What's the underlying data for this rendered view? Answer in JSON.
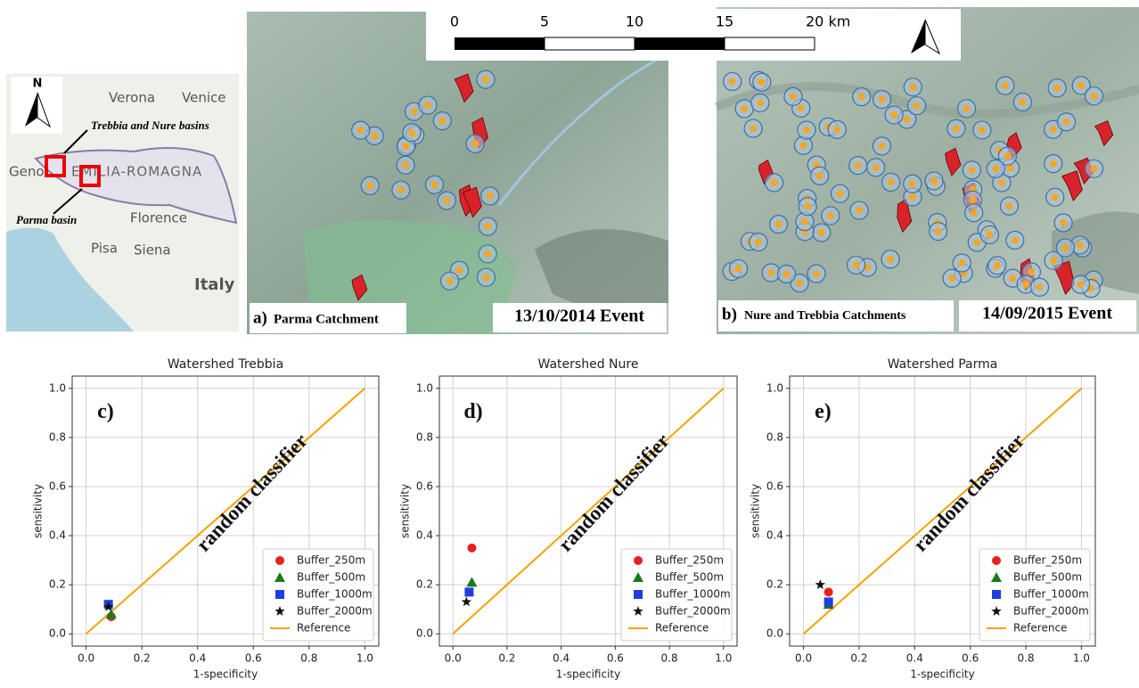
{
  "inset_map": {
    "north": "N",
    "places": [
      "Verona",
      "Venice",
      "Geno",
      "EMILIA-ROMAGNA",
      "Florence",
      "Pisa",
      "Siena",
      "Italy"
    ],
    "callout_trebbia_nure": "Trebbia and  Nure basins",
    "callout_parma": "Parma basin"
  },
  "scale_bar": [
    "0",
    "5",
    "10",
    "15",
    "20 km"
  ],
  "map_a": {
    "panel": "a)",
    "label": "Parma Catchment",
    "event": "13/10/2014 Event"
  },
  "map_b": {
    "panel": "b)",
    "label": "Nure and Trebbia Catchments",
    "event": "14/09/2015 Event"
  },
  "chart_data": [
    {
      "type": "scatter",
      "title": "Watershed Trebbia",
      "panel": "c)",
      "annotation": "random classifier",
      "xlabel": "1-specificity",
      "ylabel": "sensitivity",
      "xlim": [
        -0.05,
        1.05
      ],
      "ylim": [
        -0.05,
        1.05
      ],
      "grid": true,
      "legend": "lower right",
      "xticks": [
        {
          "value": 0,
          "label": "0.0"
        },
        {
          "value": 0.2,
          "label": "0.2"
        },
        {
          "value": 0.4,
          "label": "0.4"
        },
        {
          "value": 0.6,
          "label": "0.6"
        },
        {
          "value": 0.8,
          "label": "0.8"
        },
        {
          "value": 1,
          "label": "1.0"
        }
      ],
      "yticks": [
        {
          "value": 0,
          "label": "0.0"
        },
        {
          "value": 0.2,
          "label": "0.2"
        },
        {
          "value": 0.4,
          "label": "0.4"
        },
        {
          "value": 0.6,
          "label": "0.6"
        },
        {
          "value": 0.8,
          "label": "0.8"
        },
        {
          "value": 1,
          "label": "1.0"
        }
      ],
      "series": [
        {
          "name": "Buffer_250m",
          "color": "#e8201c",
          "marker": "circle",
          "x": [
            0.09
          ],
          "values": [
            0.07
          ]
        },
        {
          "name": "Buffer_500m",
          "color": "#1a7a1a",
          "marker": "triangle",
          "x": [
            0.09
          ],
          "values": [
            0.08
          ]
        },
        {
          "name": "Buffer_1000m",
          "color": "#1f3de0",
          "marker": "square",
          "x": [
            0.08
          ],
          "values": [
            0.12
          ]
        },
        {
          "name": "Buffer_2000m",
          "color": "#111111",
          "marker": "star",
          "x": [
            0.08
          ],
          "values": [
            0.11
          ]
        },
        {
          "name": "Reference",
          "color": "#f4a300",
          "marker": "line",
          "x": [
            0,
            1
          ],
          "values": [
            0,
            1
          ]
        }
      ]
    },
    {
      "type": "scatter",
      "title": "Watershed Nure",
      "panel": "d)",
      "annotation": "random classifier",
      "xlabel": "1-specificity",
      "ylabel": "sensitivity",
      "xlim": [
        -0.05,
        1.05
      ],
      "ylim": [
        -0.05,
        1.05
      ],
      "grid": true,
      "legend": "lower right",
      "xticks": [
        {
          "value": 0,
          "label": "0.0"
        },
        {
          "value": 0.2,
          "label": "0.2"
        },
        {
          "value": 0.4,
          "label": "0.4"
        },
        {
          "value": 0.6,
          "label": "0.6"
        },
        {
          "value": 0.8,
          "label": "0.8"
        },
        {
          "value": 1,
          "label": "1.0"
        }
      ],
      "yticks": [
        {
          "value": 0,
          "label": "0.0"
        },
        {
          "value": 0.2,
          "label": "0.2"
        },
        {
          "value": 0.4,
          "label": "0.4"
        },
        {
          "value": 0.6,
          "label": "0.6"
        },
        {
          "value": 0.8,
          "label": "0.8"
        },
        {
          "value": 1,
          "label": "1.0"
        }
      ],
      "series": [
        {
          "name": "Buffer_250m",
          "color": "#e8201c",
          "marker": "circle",
          "x": [
            0.07
          ],
          "values": [
            0.35
          ]
        },
        {
          "name": "Buffer_500m",
          "color": "#1a7a1a",
          "marker": "triangle",
          "x": [
            0.07
          ],
          "values": [
            0.21
          ]
        },
        {
          "name": "Buffer_1000m",
          "color": "#1f3de0",
          "marker": "square",
          "x": [
            0.06
          ],
          "values": [
            0.17
          ]
        },
        {
          "name": "Buffer_2000m",
          "color": "#111111",
          "marker": "star",
          "x": [
            0.05
          ],
          "values": [
            0.13
          ]
        },
        {
          "name": "Reference",
          "color": "#f4a300",
          "marker": "line",
          "x": [
            0,
            1
          ],
          "values": [
            0,
            1
          ]
        }
      ]
    },
    {
      "type": "scatter",
      "title": "Watershed Parma",
      "panel": "e)",
      "annotation": "random classifier",
      "xlabel": "1-specificity",
      "ylabel": "sensitivity",
      "xlim": [
        -0.05,
        1.05
      ],
      "ylim": [
        -0.05,
        1.05
      ],
      "grid": true,
      "legend": "lower right",
      "xticks": [
        {
          "value": 0,
          "label": "0.0"
        },
        {
          "value": 0.2,
          "label": "0.2"
        },
        {
          "value": 0.4,
          "label": "0.4"
        },
        {
          "value": 0.6,
          "label": "0.6"
        },
        {
          "value": 0.8,
          "label": "0.8"
        },
        {
          "value": 1,
          "label": "1.0"
        }
      ],
      "yticks": [
        {
          "value": 0,
          "label": "0.0"
        },
        {
          "value": 0.2,
          "label": "0.2"
        },
        {
          "value": 0.4,
          "label": "0.4"
        },
        {
          "value": 0.6,
          "label": "0.6"
        },
        {
          "value": 0.8,
          "label": "0.8"
        },
        {
          "value": 1,
          "label": "1.0"
        }
      ],
      "series": [
        {
          "name": "Buffer_250m",
          "color": "#e8201c",
          "marker": "circle",
          "x": [
            0.09
          ],
          "values": [
            0.17
          ]
        },
        {
          "name": "Buffer_500m",
          "color": "#1a7a1a",
          "marker": "triangle",
          "x": [
            0.09
          ],
          "values": [
            0.12
          ]
        },
        {
          "name": "Buffer_1000m",
          "color": "#1f3de0",
          "marker": "square",
          "x": [
            0.09
          ],
          "values": [
            0.13
          ]
        },
        {
          "name": "Buffer_2000m",
          "color": "#111111",
          "marker": "star",
          "x": [
            0.06
          ],
          "values": [
            0.2
          ]
        },
        {
          "name": "Reference",
          "color": "#f4a300",
          "marker": "line",
          "x": [
            0,
            1
          ],
          "values": [
            0,
            1
          ]
        }
      ]
    }
  ]
}
